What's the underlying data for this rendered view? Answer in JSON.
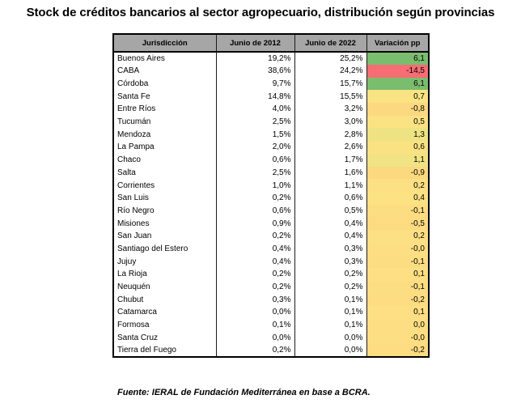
{
  "title": "Stock de créditos bancarios al sector agropecuario, distribución según provincias",
  "table": {
    "headers": [
      "Jurisdicción",
      "Junio de 2012",
      "Junio de 2022",
      "Variación pp"
    ],
    "rows": [
      {
        "name": "Buenos Aires",
        "y2012": "19,2%",
        "y2022": "25,2%",
        "var": "6,1",
        "color": "#7bbd6f"
      },
      {
        "name": "CABA",
        "y2012": "38,6%",
        "y2022": "24,2%",
        "var": "-14,5",
        "color": "#f66d73"
      },
      {
        "name": "Córdoba",
        "y2012": "9,7%",
        "y2022": "15,7%",
        "var": "6,1",
        "color": "#7bbd6f"
      },
      {
        "name": "Santa Fe",
        "y2012": "14,8%",
        "y2022": "15,5%",
        "var": "0,7",
        "color": "#f9e383"
      },
      {
        "name": "Entre Ríos",
        "y2012": "4,0%",
        "y2022": "3,2%",
        "var": "-0,8",
        "color": "#fcd880"
      },
      {
        "name": "Tucumán",
        "y2012": "2,5%",
        "y2022": "3,0%",
        "var": "0,5",
        "color": "#fbe283"
      },
      {
        "name": "Mendoza",
        "y2012": "1,5%",
        "y2022": "2,8%",
        "var": "1,3",
        "color": "#eee383"
      },
      {
        "name": "La Pampa",
        "y2012": "2,0%",
        "y2022": "2,6%",
        "var": "0,6",
        "color": "#fae283"
      },
      {
        "name": "Chaco",
        "y2012": "0,6%",
        "y2022": "1,7%",
        "var": "1,1",
        "color": "#f0e383"
      },
      {
        "name": "Salta",
        "y2012": "2,5%",
        "y2022": "1,6%",
        "var": "-0,9",
        "color": "#fcd87f"
      },
      {
        "name": "Corrientes",
        "y2012": "1,0%",
        "y2022": "1,1%",
        "var": "0,2",
        "color": "#fde083"
      },
      {
        "name": "San Luis",
        "y2012": "0,2%",
        "y2022": "0,6%",
        "var": "0,4",
        "color": "#fce283"
      },
      {
        "name": "Río Negro",
        "y2012": "0,6%",
        "y2022": "0,5%",
        "var": "-0,1",
        "color": "#fddd82"
      },
      {
        "name": "Misiones",
        "y2012": "0,9%",
        "y2022": "0,4%",
        "var": "-0,5",
        "color": "#fddb81"
      },
      {
        "name": "San Juan",
        "y2012": "0,2%",
        "y2022": "0,4%",
        "var": "0,2",
        "color": "#fde083"
      },
      {
        "name": "Santiago del Estero",
        "y2012": "0,4%",
        "y2022": "0,3%",
        "var": "-0,0",
        "color": "#fede82"
      },
      {
        "name": "Jujuy",
        "y2012": "0,4%",
        "y2022": "0,3%",
        "var": "-0,1",
        "color": "#fddd82"
      },
      {
        "name": "La Rioja",
        "y2012": "0,2%",
        "y2022": "0,2%",
        "var": "0,1",
        "color": "#fedf83"
      },
      {
        "name": "Neuquén",
        "y2012": "0,2%",
        "y2022": "0,2%",
        "var": "-0,1",
        "color": "#fddd82"
      },
      {
        "name": "Chubut",
        "y2012": "0,3%",
        "y2022": "0,1%",
        "var": "-0,2",
        "color": "#fddc82"
      },
      {
        "name": "Catamarca",
        "y2012": "0,0%",
        "y2022": "0,1%",
        "var": "0,1",
        "color": "#fedf83"
      },
      {
        "name": "Formosa",
        "y2012": "0,1%",
        "y2022": "0,1%",
        "var": "0,0",
        "color": "#fede82"
      },
      {
        "name": "Santa Cruz",
        "y2012": "0,0%",
        "y2022": "0,0%",
        "var": "-0,0",
        "color": "#fede82"
      },
      {
        "name": "Tierra del Fuego",
        "y2012": "0,2%",
        "y2022": "0,0%",
        "var": "-0,2",
        "color": "#fddc82"
      }
    ]
  },
  "source": "Fuente: IERAL de Fundación Mediterránea en base a BCRA."
}
